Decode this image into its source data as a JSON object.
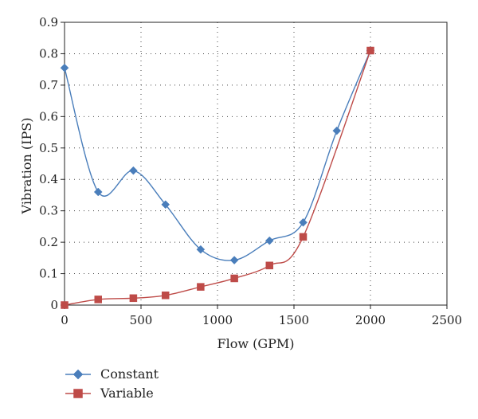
{
  "chart_data": {
    "type": "line",
    "xlabel": "Flow (GPM)",
    "ylabel": "Vibration (IPS)",
    "xlim": [
      0,
      2500
    ],
    "ylim": [
      0,
      0.9
    ],
    "xticks": [
      0,
      500,
      1000,
      1500,
      2000,
      2500
    ],
    "yticks": [
      0,
      0.1,
      0.2,
      0.3,
      0.4,
      0.5,
      0.6,
      0.7,
      0.8,
      0.9
    ],
    "xtick_labels": [
      "0",
      "500",
      "1000",
      "1500",
      "2000",
      "2500"
    ],
    "ytick_labels": [
      "0",
      "0.1",
      "0.2",
      "0.3",
      "0.4",
      "0.5",
      "0.6",
      "0.7",
      "0.8",
      "0.9"
    ],
    "grid": "dotted",
    "legend_position": "bottom-left",
    "series": [
      {
        "name": "Constant",
        "color": "#4a7ebb",
        "marker": "diamond",
        "smooth": true,
        "x": [
          0,
          220,
          450,
          660,
          890,
          1110,
          1340,
          1560,
          1780,
          2000
        ],
        "y": [
          0.755,
          0.36,
          0.428,
          0.32,
          0.177,
          0.143,
          0.205,
          0.263,
          0.555,
          0.81
        ]
      },
      {
        "name": "Variable",
        "color": "#be4b48",
        "marker": "square",
        "smooth": true,
        "x": [
          0,
          220,
          450,
          660,
          890,
          1110,
          1340,
          1560,
          2000
        ],
        "y": [
          0.0,
          0.018,
          0.022,
          0.031,
          0.058,
          0.085,
          0.126,
          0.217,
          0.81
        ]
      }
    ]
  }
}
